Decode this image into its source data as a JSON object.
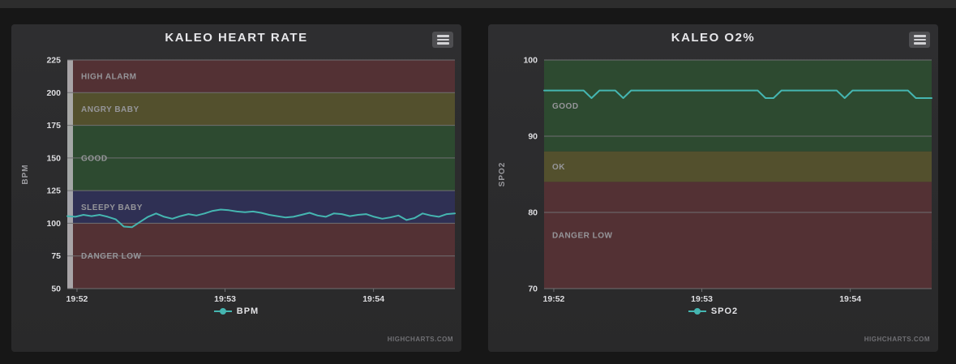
{
  "theme": {
    "background": "#171717",
    "topbar": "#2d2d2d",
    "card_background": "#2a2a2b",
    "accent": "#45b6b1",
    "grid_color": "#6f6f72",
    "text_color": "#e3e3e6",
    "band_label_color": "#96969a"
  },
  "chart_data": [
    {
      "type": "line",
      "title": "KALEO HEART RATE",
      "ylabel": "BPM",
      "ylim": [
        50,
        225
      ],
      "yticks": [
        50,
        75,
        100,
        125,
        150,
        175,
        200,
        225
      ],
      "xticks": [
        {
          "label": "19:52",
          "pos": 0.025
        },
        {
          "label": "19:53",
          "pos": 0.407
        },
        {
          "label": "19:54",
          "pos": 0.79
        }
      ],
      "grid": true,
      "axis_bar": true,
      "legend_position": "bottom",
      "plot_bands": [
        {
          "label": "HIGH ALARM",
          "from": 200,
          "to": 225,
          "color": "#533134"
        },
        {
          "label": "ANGRY BABY",
          "from": 175,
          "to": 200,
          "color": "#53502d"
        },
        {
          "label": "GOOD",
          "from": 125,
          "to": 175,
          "color": "#2d4a30"
        },
        {
          "label": "SLEEPY BABY",
          "from": 100,
          "to": 125,
          "color": "#2f3054"
        },
        {
          "label": "DANGER LOW",
          "from": 50,
          "to": 100,
          "color": "#533134"
        }
      ],
      "series": [
        {
          "name": "BPM",
          "color": "#45b6b1",
          "values": [
            105.5,
            105,
            106.5,
            105.5,
            106.5,
            105,
            103,
            97.5,
            97,
            101,
            105,
            107.5,
            105,
            103.5,
            105.5,
            107,
            106,
            107.5,
            109.5,
            110.5,
            110,
            109,
            108.5,
            109,
            108,
            106.5,
            105.5,
            104.5,
            105,
            106.5,
            108,
            106,
            105,
            107.5,
            107,
            105.5,
            106.5,
            107,
            105,
            103.5,
            104.5,
            106,
            102.5,
            104,
            107.5,
            106,
            105,
            107,
            107.5
          ]
        }
      ],
      "credits": "HIGHCHARTS.COM"
    },
    {
      "type": "line",
      "title": "KALEO O2%",
      "ylabel": "SPO2",
      "ylim": [
        70,
        100
      ],
      "yticks": [
        70,
        80,
        90,
        100
      ],
      "xticks": [
        {
          "label": "19:52",
          "pos": 0.025
        },
        {
          "label": "19:53",
          "pos": 0.407
        },
        {
          "label": "19:54",
          "pos": 0.79
        }
      ],
      "grid": true,
      "axis_bar": false,
      "legend_position": "bottom",
      "plot_bands": [
        {
          "label": "GOOD",
          "from": 88,
          "to": 100,
          "color": "#2d4a30"
        },
        {
          "label": "OK",
          "from": 84,
          "to": 88,
          "color": "#53502d"
        },
        {
          "label": "DANGER LOW",
          "from": 70,
          "to": 84,
          "color": "#533134"
        }
      ],
      "series": [
        {
          "name": "SPO2",
          "color": "#45b6b1",
          "values": [
            96,
            96,
            96,
            96,
            96,
            96,
            95,
            96,
            96,
            96,
            95,
            96,
            96,
            96,
            96,
            96,
            96,
            96,
            96,
            96,
            96,
            96,
            96,
            96,
            96,
            96,
            96,
            96,
            95,
            95,
            96,
            96,
            96,
            96,
            96,
            96,
            96,
            96,
            95,
            96,
            96,
            96,
            96,
            96,
            96,
            96,
            96,
            95,
            95,
            95
          ]
        }
      ],
      "credits": "HIGHCHARTS.COM"
    }
  ]
}
